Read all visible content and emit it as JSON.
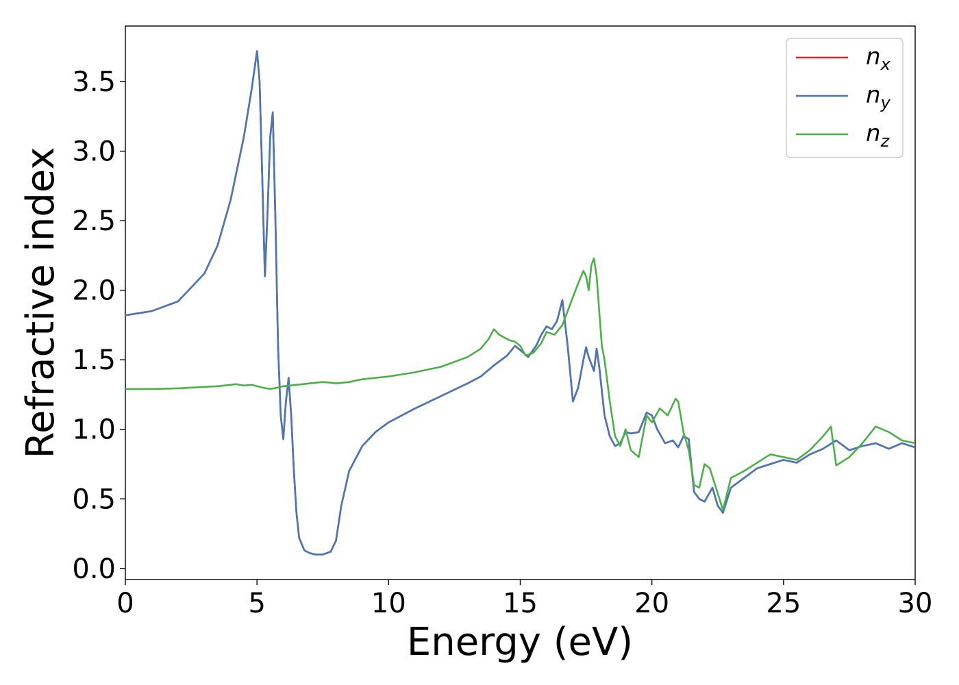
{
  "chart_data": {
    "type": "line",
    "title": "",
    "xlabel": "Energy (eV)",
    "ylabel": "Refractive index",
    "xlim": [
      0,
      30
    ],
    "ylim": [
      -0.08,
      3.9
    ],
    "xticks": [
      0,
      5,
      10,
      15,
      20,
      25,
      30
    ],
    "xtick_labels": [
      "0",
      "5",
      "10",
      "15",
      "20",
      "25",
      "30"
    ],
    "yticks": [
      0.0,
      0.5,
      1.0,
      1.5,
      2.0,
      2.5,
      3.0,
      3.5
    ],
    "ytick_labels": [
      "0.0",
      "0.5",
      "1.0",
      "1.5",
      "2.0",
      "2.5",
      "3.0",
      "3.5"
    ],
    "grid": false,
    "legend_position": "top-right",
    "series": [
      {
        "name": "n",
        "subscript": "x",
        "color": "#d62728",
        "x": [
          0,
          1,
          2,
          3,
          3.5,
          4,
          4.5,
          4.8,
          5.0,
          5.1,
          5.2,
          5.3,
          5.4,
          5.5,
          5.6,
          5.7,
          5.8,
          5.9,
          6.0,
          6.1,
          6.2,
          6.3,
          6.4,
          6.5,
          6.6,
          6.8,
          7.0,
          7.2,
          7.5,
          7.8,
          8.0,
          8.2,
          8.5,
          9.0,
          9.5,
          10,
          11,
          12,
          13,
          13.5,
          14,
          14.5,
          14.8,
          15.0,
          15.3,
          15.6,
          15.8,
          16.0,
          16.2,
          16.4,
          16.6,
          16.8,
          17.0,
          17.2,
          17.4,
          17.5,
          17.6,
          17.8,
          17.9,
          18.0,
          18.2,
          18.4,
          18.6,
          18.8,
          19.0,
          19.2,
          19.5,
          19.8,
          20.0,
          20.2,
          20.5,
          20.8,
          21.0,
          21.2,
          21.4,
          21.6,
          21.8,
          22.0,
          22.3,
          22.5,
          22.7,
          23.0,
          23.5,
          24.0,
          24.5,
          25.0,
          25.5,
          26.0,
          26.5,
          27.0,
          27.5,
          28.0,
          28.5,
          29.0,
          29.5,
          30
        ],
        "y": [
          1.82,
          1.85,
          1.92,
          2.12,
          2.32,
          2.65,
          3.1,
          3.45,
          3.72,
          3.5,
          2.8,
          2.1,
          2.55,
          3.1,
          3.28,
          2.5,
          1.6,
          1.1,
          0.93,
          1.2,
          1.37,
          1.1,
          0.7,
          0.4,
          0.22,
          0.13,
          0.11,
          0.1,
          0.1,
          0.12,
          0.2,
          0.45,
          0.7,
          0.88,
          0.98,
          1.05,
          1.15,
          1.24,
          1.33,
          1.38,
          1.46,
          1.53,
          1.6,
          1.57,
          1.52,
          1.6,
          1.68,
          1.74,
          1.72,
          1.78,
          1.93,
          1.6,
          1.2,
          1.3,
          1.5,
          1.59,
          1.52,
          1.42,
          1.58,
          1.45,
          1.1,
          0.95,
          0.88,
          0.9,
          0.98,
          0.97,
          0.98,
          1.12,
          1.1,
          1.0,
          0.9,
          0.92,
          0.87,
          0.95,
          0.93,
          0.55,
          0.5,
          0.48,
          0.58,
          0.45,
          0.4,
          0.58,
          0.65,
          0.72,
          0.75,
          0.78,
          0.76,
          0.82,
          0.86,
          0.92,
          0.85,
          0.88,
          0.9,
          0.86,
          0.9,
          0.87
        ]
      },
      {
        "name": "n",
        "subscript": "y",
        "color": "#4a78b5",
        "x": [
          0,
          1,
          2,
          3,
          3.5,
          4,
          4.5,
          4.8,
          5.0,
          5.1,
          5.2,
          5.3,
          5.4,
          5.5,
          5.6,
          5.7,
          5.8,
          5.9,
          6.0,
          6.1,
          6.2,
          6.3,
          6.4,
          6.5,
          6.6,
          6.8,
          7.0,
          7.2,
          7.5,
          7.8,
          8.0,
          8.2,
          8.5,
          9.0,
          9.5,
          10,
          11,
          12,
          13,
          13.5,
          14,
          14.5,
          14.8,
          15.0,
          15.3,
          15.6,
          15.8,
          16.0,
          16.2,
          16.4,
          16.6,
          16.8,
          17.0,
          17.2,
          17.4,
          17.5,
          17.6,
          17.8,
          17.9,
          18.0,
          18.2,
          18.4,
          18.6,
          18.8,
          19.0,
          19.2,
          19.5,
          19.8,
          20.0,
          20.2,
          20.5,
          20.8,
          21.0,
          21.2,
          21.4,
          21.6,
          21.8,
          22.0,
          22.3,
          22.5,
          22.7,
          23.0,
          23.5,
          24.0,
          24.5,
          25.0,
          25.5,
          26.0,
          26.5,
          27.0,
          27.5,
          28.0,
          28.5,
          29.0,
          29.5,
          30
        ],
        "y": [
          1.82,
          1.85,
          1.92,
          2.12,
          2.32,
          2.65,
          3.1,
          3.45,
          3.72,
          3.5,
          2.8,
          2.1,
          2.55,
          3.1,
          3.28,
          2.5,
          1.6,
          1.1,
          0.93,
          1.2,
          1.37,
          1.1,
          0.7,
          0.4,
          0.22,
          0.13,
          0.11,
          0.1,
          0.1,
          0.12,
          0.2,
          0.45,
          0.7,
          0.88,
          0.98,
          1.05,
          1.15,
          1.24,
          1.33,
          1.38,
          1.46,
          1.53,
          1.6,
          1.57,
          1.52,
          1.6,
          1.68,
          1.74,
          1.72,
          1.78,
          1.93,
          1.6,
          1.2,
          1.3,
          1.5,
          1.59,
          1.52,
          1.42,
          1.58,
          1.45,
          1.1,
          0.95,
          0.88,
          0.9,
          0.98,
          0.97,
          0.98,
          1.12,
          1.1,
          1.0,
          0.9,
          0.92,
          0.87,
          0.95,
          0.93,
          0.55,
          0.5,
          0.48,
          0.58,
          0.45,
          0.4,
          0.58,
          0.65,
          0.72,
          0.75,
          0.78,
          0.76,
          0.82,
          0.86,
          0.92,
          0.85,
          0.88,
          0.9,
          0.86,
          0.9,
          0.87
        ]
      },
      {
        "name": "n",
        "subscript": "z",
        "color": "#4daf4a",
        "x": [
          0,
          1,
          2,
          3,
          3.5,
          4,
          4.2,
          4.5,
          4.8,
          5.0,
          5.2,
          5.5,
          5.8,
          6.0,
          6.5,
          7.0,
          7.5,
          7.8,
          8.0,
          8.5,
          9.0,
          10,
          11,
          12,
          13,
          13.5,
          13.8,
          14.0,
          14.2,
          14.4,
          14.6,
          14.8,
          15.0,
          15.2,
          15.5,
          15.8,
          16.0,
          16.3,
          16.6,
          16.9,
          17.2,
          17.4,
          17.5,
          17.6,
          17.7,
          17.8,
          17.9,
          18.0,
          18.1,
          18.2,
          18.4,
          18.6,
          18.8,
          19.0,
          19.2,
          19.5,
          19.8,
          20.0,
          20.3,
          20.6,
          20.9,
          21.0,
          21.2,
          21.4,
          21.6,
          21.8,
          22.0,
          22.2,
          22.4,
          22.7,
          23.0,
          23.5,
          24.0,
          24.5,
          25.0,
          25.5,
          26.0,
          26.5,
          26.8,
          27.0,
          27.5,
          28.0,
          28.5,
          29.0,
          29.5,
          30
        ],
        "y": [
          1.29,
          1.29,
          1.295,
          1.305,
          1.31,
          1.32,
          1.325,
          1.315,
          1.32,
          1.31,
          1.3,
          1.29,
          1.3,
          1.31,
          1.32,
          1.33,
          1.34,
          1.335,
          1.33,
          1.34,
          1.36,
          1.38,
          1.41,
          1.45,
          1.52,
          1.58,
          1.65,
          1.72,
          1.68,
          1.66,
          1.64,
          1.63,
          1.6,
          1.53,
          1.55,
          1.62,
          1.7,
          1.68,
          1.75,
          1.9,
          2.05,
          2.14,
          2.1,
          2.0,
          2.18,
          2.23,
          2.1,
          1.85,
          1.6,
          1.5,
          1.2,
          0.95,
          0.88,
          1.0,
          0.85,
          0.8,
          1.1,
          1.05,
          1.15,
          1.1,
          1.22,
          1.2,
          0.98,
          0.85,
          0.6,
          0.58,
          0.75,
          0.72,
          0.6,
          0.42,
          0.65,
          0.7,
          0.76,
          0.82,
          0.8,
          0.78,
          0.85,
          0.95,
          1.02,
          0.74,
          0.8,
          0.9,
          1.02,
          0.98,
          0.92,
          0.9
        ]
      }
    ]
  }
}
